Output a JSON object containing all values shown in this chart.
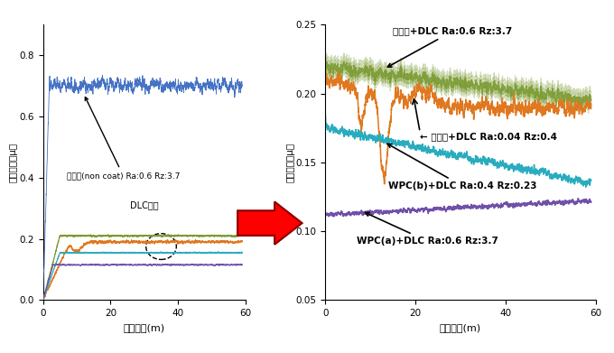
{
  "left_plot": {
    "xlim": [
      0,
      60
    ],
    "ylim": [
      0,
      0.9
    ],
    "yticks": [
      0,
      0.2,
      0.4,
      0.6,
      0.8
    ],
    "xticks": [
      0,
      20,
      40,
      60
    ],
    "xlabel": "摺動距離(m)",
    "ylabel": "摩擦係数（μ）",
    "annotation_blue": "研削面(non coat) Ra:0.6 Rz:3.7",
    "annotation_dlc": "DLC被覆"
  },
  "right_plot": {
    "xlim": [
      0,
      60
    ],
    "ylim": [
      0.05,
      0.25
    ],
    "yticks": [
      0.05,
      0.1,
      0.15,
      0.2,
      0.25
    ],
    "xticks": [
      0,
      20,
      40,
      60
    ],
    "xlabel": "摺動距離(m)",
    "ylabel": "摩擦係数（μ）",
    "ann_green": "研削面+DLC Ra:0.6 Rz:3.7",
    "ann_orange": "← 研磨面+DLC Ra:0.04 Rz:0.4",
    "ann_cyan": "WPC(b)+DLC Ra:0.4 Rz:0.23",
    "ann_purple": "WPC(a)+DLC Ra:0.6 Rz:3.7"
  },
  "colors": {
    "blue": "#4472c4",
    "green": "#7a9a30",
    "orange": "#e07820",
    "cyan": "#2aacbf",
    "purple": "#7050a8"
  },
  "seed": 42
}
